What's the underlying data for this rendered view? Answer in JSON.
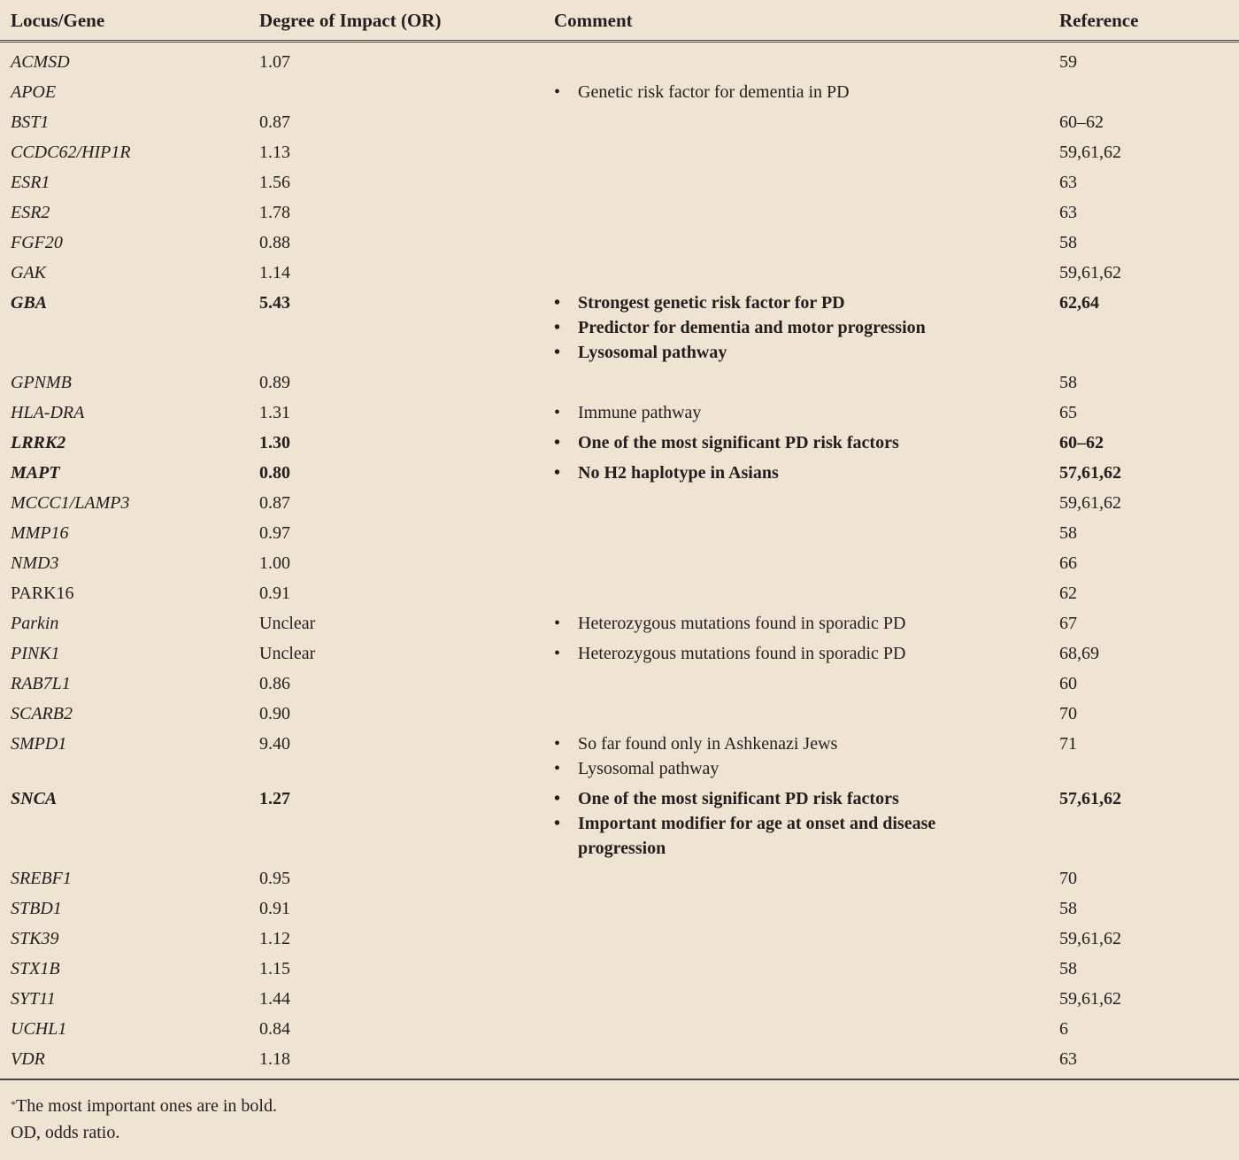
{
  "table": {
    "headers": [
      "Locus/Gene",
      "Degree of Impact (OR)",
      "Comment",
      "Reference"
    ],
    "rows": [
      {
        "gene": "ACMSD",
        "or": "1.07",
        "comment": [],
        "ref": "59",
        "bold": false,
        "italic": true
      },
      {
        "gene": "APOE",
        "or": "",
        "comment": [
          "Genetic risk factor for dementia in PD"
        ],
        "ref": "",
        "bold": false,
        "italic": true
      },
      {
        "gene": "BST1",
        "or": "0.87",
        "comment": [],
        "ref": "60–62",
        "bold": false,
        "italic": true
      },
      {
        "gene": "CCDC62/HIP1R",
        "or": "1.13",
        "comment": [],
        "ref": "59,61,62",
        "bold": false,
        "italic": true
      },
      {
        "gene": "ESR1",
        "or": "1.56",
        "comment": [],
        "ref": "63",
        "bold": false,
        "italic": true
      },
      {
        "gene": "ESR2",
        "or": "1.78",
        "comment": [],
        "ref": "63",
        "bold": false,
        "italic": true
      },
      {
        "gene": "FGF20",
        "or": "0.88",
        "comment": [],
        "ref": "58",
        "bold": false,
        "italic": true
      },
      {
        "gene": "GAK",
        "or": "1.14",
        "comment": [],
        "ref": "59,61,62",
        "bold": false,
        "italic": true
      },
      {
        "gene": "GBA",
        "or": "5.43",
        "comment": [
          "Strongest genetic risk factor for PD",
          "Predictor for dementia and motor progression",
          "Lysosomal pathway"
        ],
        "ref": "62,64",
        "bold": true,
        "italic": true
      },
      {
        "gene": "GPNMB",
        "or": "0.89",
        "comment": [],
        "ref": "58",
        "bold": false,
        "italic": true
      },
      {
        "gene": "HLA-DRA",
        "or": "1.31",
        "comment": [
          "Immune pathway"
        ],
        "ref": "65",
        "bold": false,
        "italic": true
      },
      {
        "gene": "LRRK2",
        "or": "1.30",
        "comment": [
          "One of the most significant PD risk factors"
        ],
        "ref": "60–62",
        "bold": true,
        "italic": true
      },
      {
        "gene": "MAPT",
        "or": "0.80",
        "comment": [
          "No H2 haplotype in Asians"
        ],
        "ref": "57,61,62",
        "bold": true,
        "italic": true
      },
      {
        "gene": "MCCC1/LAMP3",
        "or": "0.87",
        "comment": [],
        "ref": "59,61,62",
        "bold": false,
        "italic": true
      },
      {
        "gene": "MMP16",
        "or": "0.97",
        "comment": [],
        "ref": "58",
        "bold": false,
        "italic": true
      },
      {
        "gene": "NMD3",
        "or": "1.00",
        "comment": [],
        "ref": "66",
        "bold": false,
        "italic": true
      },
      {
        "gene": "PARK16",
        "or": "0.91",
        "comment": [],
        "ref": "62",
        "bold": false,
        "italic": false
      },
      {
        "gene": "Parkin",
        "or": "Unclear",
        "comment": [
          "Heterozygous mutations found in sporadic PD"
        ],
        "ref": "67",
        "bold": false,
        "italic": true
      },
      {
        "gene": "PINK1",
        "or": "Unclear",
        "comment": [
          "Heterozygous mutations found in sporadic PD"
        ],
        "ref": "68,69",
        "bold": false,
        "italic": true
      },
      {
        "gene": "RAB7L1",
        "or": "0.86",
        "comment": [],
        "ref": "60",
        "bold": false,
        "italic": true
      },
      {
        "gene": "SCARB2",
        "or": "0.90",
        "comment": [],
        "ref": "70",
        "bold": false,
        "italic": true
      },
      {
        "gene": "SMPD1",
        "or": "9.40",
        "comment": [
          "So far found only in Ashkenazi Jews",
          "Lysosomal pathway"
        ],
        "ref": "71",
        "bold": false,
        "italic": true
      },
      {
        "gene": "SNCA",
        "or": "1.27",
        "comment": [
          "One of the most significant PD risk factors",
          "Important modifier for age at onset and disease progression"
        ],
        "ref": "57,61,62",
        "bold": true,
        "italic": true
      },
      {
        "gene": "SREBF1",
        "or": "0.95",
        "comment": [],
        "ref": "70",
        "bold": false,
        "italic": true
      },
      {
        "gene": "STBD1",
        "or": "0.91",
        "comment": [],
        "ref": "58",
        "bold": false,
        "italic": true
      },
      {
        "gene": "STK39",
        "or": "1.12",
        "comment": [],
        "ref": "59,61,62",
        "bold": false,
        "italic": true
      },
      {
        "gene": "STX1B",
        "or": "1.15",
        "comment": [],
        "ref": "58",
        "bold": false,
        "italic": true
      },
      {
        "gene": "SYT11",
        "or": "1.44",
        "comment": [],
        "ref": "59,61,62",
        "bold": false,
        "italic": true
      },
      {
        "gene": "UCHL1",
        "or": "0.84",
        "comment": [],
        "ref": "6",
        "bold": false,
        "italic": true
      },
      {
        "gene": "VDR",
        "or": "1.18",
        "comment": [],
        "ref": "63",
        "bold": false,
        "italic": true
      }
    ]
  },
  "footer": {
    "note_marker": "*",
    "note": "The most important ones are in bold.",
    "abbreviation": "OD, odds ratio."
  },
  "bullet": "•",
  "colors": {
    "background": "#efe3d1",
    "text": "#231f20"
  }
}
